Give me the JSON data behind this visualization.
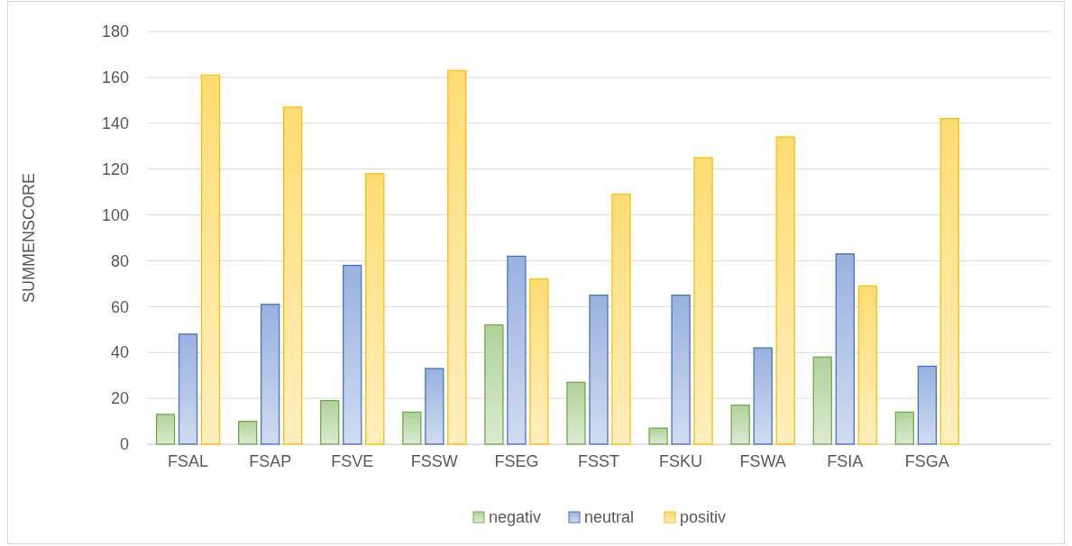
{
  "chart_data": {
    "type": "bar",
    "ylabel": "SUMMENSCORE",
    "categories": [
      "FSAL",
      "FSAP",
      "FSVE",
      "FSSW",
      "FSEG",
      "FSST",
      "FSKU",
      "FSWA",
      "FSIA",
      "FSGA",
      null
    ],
    "series": [
      {
        "name": "negativ",
        "color": "#70ad47",
        "values": [
          13,
          10,
          19,
          14,
          52,
          27,
          7,
          17,
          38,
          14,
          null
        ]
      },
      {
        "name": "neutral",
        "color": "#4472c4",
        "values": [
          48,
          61,
          78,
          33,
          82,
          65,
          65,
          42,
          83,
          34,
          null
        ]
      },
      {
        "name": "positiv",
        "color": "#ffc000",
        "values": [
          161,
          147,
          118,
          163,
          72,
          109,
          125,
          134,
          69,
          142,
          null
        ]
      }
    ],
    "ylim": [
      0,
      180
    ],
    "yticks": [
      0,
      20,
      40,
      60,
      80,
      100,
      120,
      140,
      160,
      180
    ],
    "grid": "y",
    "legend": "bottom"
  }
}
